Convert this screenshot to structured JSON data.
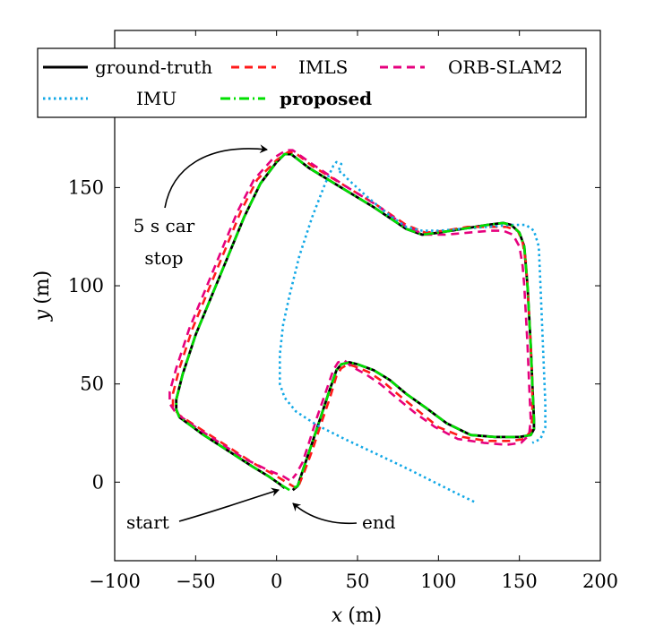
{
  "chart_data": {
    "type": "line",
    "xlabel_var": "x",
    "ylabel_var": "y",
    "xlabel_unit": "(m)",
    "ylabel_unit": "(m)",
    "xlim": [
      -100,
      200
    ],
    "ylim": [
      -40,
      230
    ],
    "xticks": [
      -100,
      -50,
      0,
      50,
      100,
      150,
      200
    ],
    "yticks": [
      0,
      50,
      100,
      150
    ],
    "xtick_labels": [
      "−100",
      "−50",
      "0",
      "50",
      "100",
      "150",
      "200"
    ],
    "ytick_labels": [
      "0",
      "50",
      "100",
      "150"
    ],
    "grid": false,
    "legend_position": "top",
    "legend": [
      {
        "key": "gt",
        "label": "ground-truth",
        "bold": false
      },
      {
        "key": "imls",
        "label": "IMLS",
        "bold": false
      },
      {
        "key": "orb",
        "label": "ORB-SLAM2",
        "bold": false
      },
      {
        "key": "imu",
        "label": "IMU",
        "bold": false
      },
      {
        "key": "proposed",
        "label": "proposed",
        "bold": true
      }
    ],
    "annotations": [
      {
        "key": "stop",
        "lines": [
          "5 s car",
          "stop"
        ]
      },
      {
        "key": "start",
        "lines": [
          "start"
        ]
      },
      {
        "key": "end",
        "lines": [
          "end"
        ]
      }
    ],
    "series": [
      {
        "key": "gt",
        "name": "ground-truth",
        "color": "#000000",
        "style": "solid",
        "points": [
          [
            5,
            -3
          ],
          [
            2,
            -1
          ],
          [
            -5,
            3
          ],
          [
            -15,
            8
          ],
          [
            -30,
            16
          ],
          [
            -45,
            24
          ],
          [
            -60,
            33
          ],
          [
            -62,
            37
          ],
          [
            -62,
            42
          ],
          [
            -58,
            55
          ],
          [
            -50,
            75
          ],
          [
            -40,
            95
          ],
          [
            -30,
            115
          ],
          [
            -20,
            135
          ],
          [
            -10,
            152
          ],
          [
            0,
            163
          ],
          [
            5,
            167
          ],
          [
            9,
            167
          ],
          [
            20,
            160
          ],
          [
            40,
            150
          ],
          [
            60,
            140
          ],
          [
            80,
            129
          ],
          [
            90,
            126
          ],
          [
            100,
            127
          ],
          [
            115,
            129
          ],
          [
            130,
            131
          ],
          [
            140,
            132
          ],
          [
            145,
            131
          ],
          [
            150,
            127
          ],
          [
            153,
            120
          ],
          [
            154,
            110
          ],
          [
            155,
            100
          ],
          [
            156,
            85
          ],
          [
            157,
            70
          ],
          [
            158,
            50
          ],
          [
            159,
            32
          ],
          [
            159,
            27
          ],
          [
            157,
            24
          ],
          [
            150,
            23
          ],
          [
            135,
            23
          ],
          [
            120,
            24
          ],
          [
            105,
            30
          ],
          [
            92,
            38
          ],
          [
            80,
            45
          ],
          [
            70,
            52
          ],
          [
            60,
            57
          ],
          [
            50,
            60
          ],
          [
            45,
            61
          ],
          [
            40,
            60
          ],
          [
            37,
            57
          ],
          [
            32,
            45
          ],
          [
            28,
            35
          ],
          [
            22,
            20
          ],
          [
            17,
            8
          ],
          [
            13,
            -2
          ],
          [
            10,
            -4
          ]
        ]
      },
      {
        "key": "imls",
        "name": "IMLS",
        "color": "#ff1a1a",
        "style": "dashed",
        "points": [
          [
            12,
            -3
          ],
          [
            8,
            -1
          ],
          [
            0,
            3
          ],
          [
            -15,
            10
          ],
          [
            -30,
            18
          ],
          [
            -45,
            26
          ],
          [
            -60,
            34
          ],
          [
            -64,
            38
          ],
          [
            -64,
            45
          ],
          [
            -60,
            58
          ],
          [
            -52,
            78
          ],
          [
            -42,
            98
          ],
          [
            -32,
            118
          ],
          [
            -22,
            138
          ],
          [
            -12,
            154
          ],
          [
            0,
            164
          ],
          [
            7,
            168
          ],
          [
            11,
            168
          ],
          [
            22,
            161
          ],
          [
            42,
            151
          ],
          [
            62,
            141
          ],
          [
            80,
            131
          ],
          [
            92,
            127
          ],
          [
            104,
            128
          ],
          [
            118,
            130
          ],
          [
            132,
            130
          ],
          [
            142,
            130
          ],
          [
            149,
            128
          ],
          [
            152,
            122
          ],
          [
            154,
            112
          ],
          [
            155,
            100
          ],
          [
            156,
            85
          ],
          [
            157,
            70
          ],
          [
            158,
            50
          ],
          [
            158,
            33
          ],
          [
            157,
            26
          ],
          [
            153,
            22
          ],
          [
            145,
            21
          ],
          [
            130,
            21
          ],
          [
            115,
            23
          ],
          [
            100,
            28
          ],
          [
            88,
            36
          ],
          [
            76,
            44
          ],
          [
            66,
            51
          ],
          [
            57,
            56
          ],
          [
            48,
            59
          ],
          [
            44,
            60
          ],
          [
            40,
            58
          ],
          [
            37,
            54
          ],
          [
            33,
            43
          ],
          [
            28,
            31
          ],
          [
            22,
            16
          ],
          [
            17,
            5
          ],
          [
            14,
            -1
          ],
          [
            12,
            -3
          ]
        ]
      },
      {
        "key": "orb",
        "name": "ORB-SLAM2",
        "color": "#e6007e",
        "style": "dashed",
        "points": [
          [
            8,
            1
          ],
          [
            4,
            3
          ],
          [
            -5,
            6
          ],
          [
            -20,
            12
          ],
          [
            -35,
            20
          ],
          [
            -50,
            28
          ],
          [
            -62,
            35
          ],
          [
            -66,
            40
          ],
          [
            -66,
            46
          ],
          [
            -62,
            58
          ],
          [
            -54,
            78
          ],
          [
            -44,
            98
          ],
          [
            -34,
            118
          ],
          [
            -24,
            138
          ],
          [
            -14,
            154
          ],
          [
            -2,
            165
          ],
          [
            6,
            169
          ],
          [
            10,
            169
          ],
          [
            22,
            162
          ],
          [
            42,
            151
          ],
          [
            62,
            141
          ],
          [
            80,
            130
          ],
          [
            92,
            126
          ],
          [
            104,
            126
          ],
          [
            118,
            127
          ],
          [
            132,
            128
          ],
          [
            140,
            128
          ],
          [
            146,
            126
          ],
          [
            150,
            120
          ],
          [
            152,
            110
          ],
          [
            153,
            100
          ],
          [
            154,
            85
          ],
          [
            155,
            70
          ],
          [
            156,
            50
          ],
          [
            157,
            32
          ],
          [
            156,
            24
          ],
          [
            151,
            20
          ],
          [
            142,
            19
          ],
          [
            128,
            20
          ],
          [
            112,
            22
          ],
          [
            98,
            28
          ],
          [
            86,
            35
          ],
          [
            74,
            43
          ],
          [
            64,
            50
          ],
          [
            55,
            55
          ],
          [
            46,
            59
          ],
          [
            42,
            62
          ],
          [
            38,
            61
          ],
          [
            35,
            57
          ],
          [
            30,
            45
          ],
          [
            25,
            33
          ],
          [
            20,
            20
          ],
          [
            16,
            10
          ],
          [
            12,
            4
          ],
          [
            10,
            2
          ]
        ]
      },
      {
        "key": "imu",
        "name": "IMU",
        "color": "#12a8e6",
        "style": "dotted",
        "points": [
          [
            122,
            -10
          ],
          [
            112,
            -6
          ],
          [
            95,
            1
          ],
          [
            78,
            8
          ],
          [
            60,
            15
          ],
          [
            42,
            22
          ],
          [
            25,
            29
          ],
          [
            12,
            36
          ],
          [
            5,
            43
          ],
          [
            2,
            50
          ],
          [
            2,
            65
          ],
          [
            4,
            80
          ],
          [
            8,
            95
          ],
          [
            14,
            115
          ],
          [
            22,
            135
          ],
          [
            30,
            152
          ],
          [
            35,
            161
          ],
          [
            37,
            163
          ],
          [
            40,
            162
          ],
          [
            38,
            158
          ],
          [
            40,
            158
          ],
          [
            43,
            155
          ],
          [
            55,
            146
          ],
          [
            68,
            137
          ],
          [
            80,
            130
          ],
          [
            90,
            128
          ],
          [
            100,
            128
          ],
          [
            115,
            129
          ],
          [
            130,
            130
          ],
          [
            145,
            131
          ],
          [
            154,
            131
          ],
          [
            159,
            128
          ],
          [
            162,
            120
          ],
          [
            163,
            100
          ],
          [
            164,
            80
          ],
          [
            165,
            60
          ],
          [
            166,
            40
          ],
          [
            166,
            28
          ],
          [
            163,
            22
          ],
          [
            158,
            20
          ]
        ]
      },
      {
        "key": "proposed",
        "name": "proposed",
        "color": "#00e000",
        "style": "dashdot",
        "points": [
          [
            8,
            -4
          ],
          [
            4,
            -2
          ],
          [
            -5,
            3
          ],
          [
            -15,
            8
          ],
          [
            -30,
            16
          ],
          [
            -45,
            24
          ],
          [
            -60,
            33
          ],
          [
            -62,
            37
          ],
          [
            -62,
            42
          ],
          [
            -58,
            55
          ],
          [
            -50,
            75
          ],
          [
            -40,
            95
          ],
          [
            -30,
            115
          ],
          [
            -20,
            135
          ],
          [
            -10,
            152
          ],
          [
            0,
            163
          ],
          [
            5,
            167
          ],
          [
            9,
            167
          ],
          [
            20,
            160
          ],
          [
            40,
            150
          ],
          [
            60,
            140
          ],
          [
            80,
            129
          ],
          [
            90,
            126
          ],
          [
            100,
            127
          ],
          [
            115,
            129
          ],
          [
            130,
            131
          ],
          [
            140,
            132
          ],
          [
            145,
            131
          ],
          [
            150,
            127
          ],
          [
            153,
            120
          ],
          [
            154,
            110
          ],
          [
            155,
            100
          ],
          [
            156,
            85
          ],
          [
            157,
            70
          ],
          [
            158,
            50
          ],
          [
            159,
            32
          ],
          [
            159,
            27
          ],
          [
            157,
            24
          ],
          [
            150,
            23
          ],
          [
            135,
            23
          ],
          [
            120,
            24
          ],
          [
            105,
            30
          ],
          [
            92,
            38
          ],
          [
            80,
            45
          ],
          [
            70,
            52
          ],
          [
            60,
            57
          ],
          [
            50,
            60
          ],
          [
            45,
            61
          ],
          [
            40,
            60
          ],
          [
            37,
            57
          ],
          [
            32,
            45
          ],
          [
            28,
            35
          ],
          [
            22,
            20
          ],
          [
            17,
            8
          ],
          [
            13,
            -2
          ],
          [
            10,
            -3
          ]
        ]
      }
    ]
  }
}
